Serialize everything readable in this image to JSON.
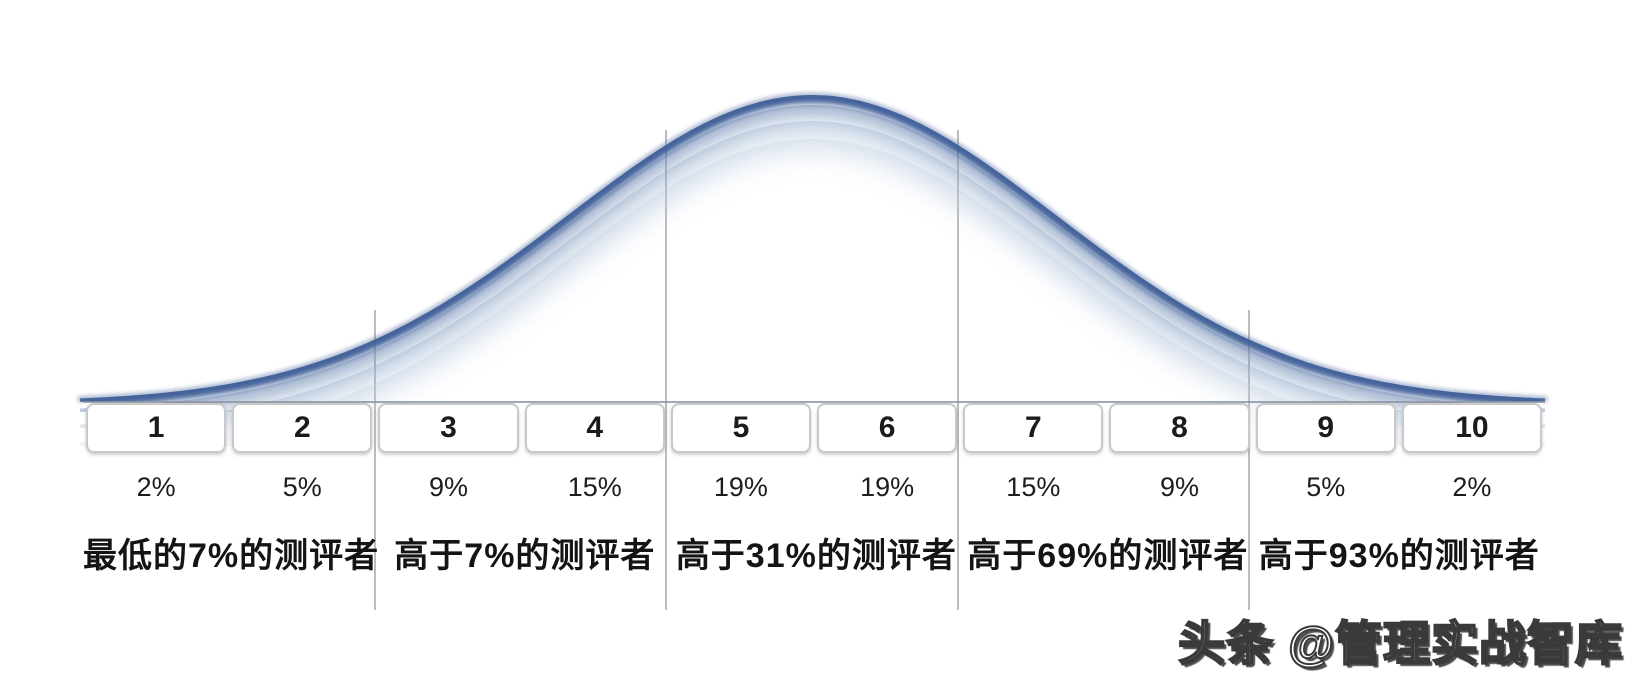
{
  "chart_data": {
    "type": "area",
    "title": "",
    "subtitle": "",
    "curve_shape": "normal-distribution",
    "categories": [
      "1",
      "2",
      "3",
      "4",
      "5",
      "6",
      "7",
      "8",
      "9",
      "10"
    ],
    "values": [
      2,
      5,
      9,
      15,
      19,
      19,
      15,
      9,
      5,
      2
    ],
    "percent_labels": [
      "2%",
      "5%",
      "9%",
      "15%",
      "19%",
      "19%",
      "15%",
      "9%",
      "5%",
      "2%"
    ],
    "group_labels": [
      "最低的7%的测评者",
      "高于7%的测评者",
      "高于31%的测评者",
      "高于69%的测评者",
      "高于93%的测评者"
    ],
    "xlabel": "",
    "ylabel": "",
    "legend": false,
    "grid": false,
    "layout_hints": {
      "dividers_between_boxes": [
        2,
        4,
        6,
        8
      ],
      "boxes_per_sigma": 2
    },
    "colors": {
      "curve_edge": "#44639b",
      "curve_fade_mid": "#7b95bc",
      "curve_fade_light": "#a6bad4",
      "curve_fade_lightest": "#c6d3e6",
      "divider_line": "#bcbcbc",
      "baseline": "#8a94a2",
      "box_border": "#c9c9c9",
      "text": "#1d1d1d"
    }
  },
  "watermark": {
    "text": "头条 @管理实战智库"
  }
}
